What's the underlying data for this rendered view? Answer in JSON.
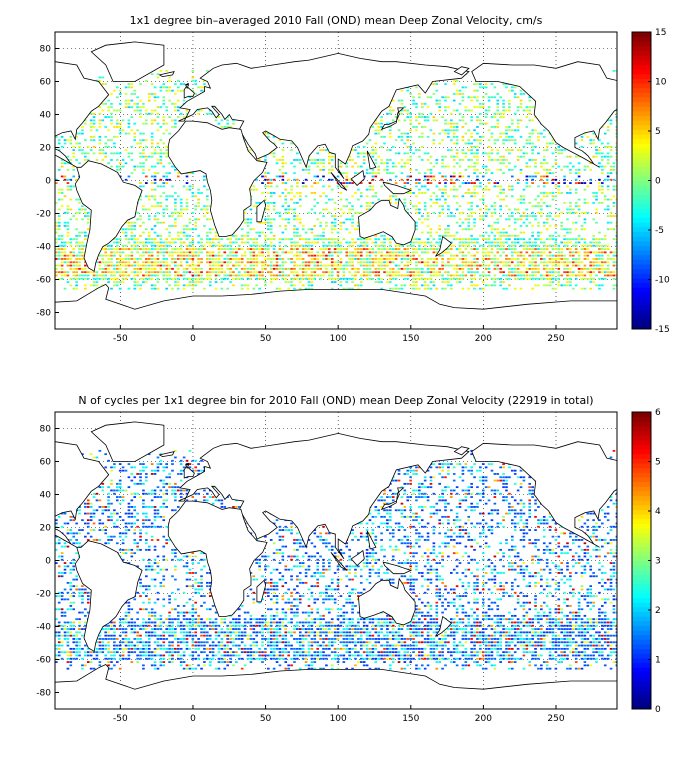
{
  "chart_data": [
    {
      "type": "heatmap",
      "title": "1x1 degree bin–averaged 2010 Fall (OND) mean Deep Zonal Velocity, cm/s",
      "xlim": [
        -95,
        292
      ],
      "ylim": [
        -90,
        90
      ],
      "x_ticks": [
        -50,
        0,
        50,
        100,
        150,
        200,
        250
      ],
      "y_ticks": [
        -80,
        -60,
        -40,
        -20,
        0,
        20,
        40,
        60,
        80
      ],
      "grid": true,
      "colorbar": {
        "min": -15,
        "max": 15,
        "ticks": [
          -15,
          -10,
          -5,
          0,
          5,
          10,
          15
        ]
      },
      "colormap": "jet",
      "seed": 11
    },
    {
      "type": "heatmap",
      "title": "N of cycles per 1x1 degree bin for 2010 Fall (OND) mean Deep Zonal Velocity (22919 in total)",
      "xlim": [
        -95,
        292
      ],
      "ylim": [
        -90,
        90
      ],
      "x_ticks": [
        -50,
        0,
        50,
        100,
        150,
        200,
        250
      ],
      "y_ticks": [
        -80,
        -60,
        -40,
        -20,
        0,
        20,
        40,
        60,
        80
      ],
      "grid": true,
      "colorbar": {
        "min": 0,
        "max": 6,
        "ticks": [
          0,
          1,
          2,
          3,
          4,
          5,
          6
        ]
      },
      "colormap": "jet",
      "seed": 29
    }
  ]
}
